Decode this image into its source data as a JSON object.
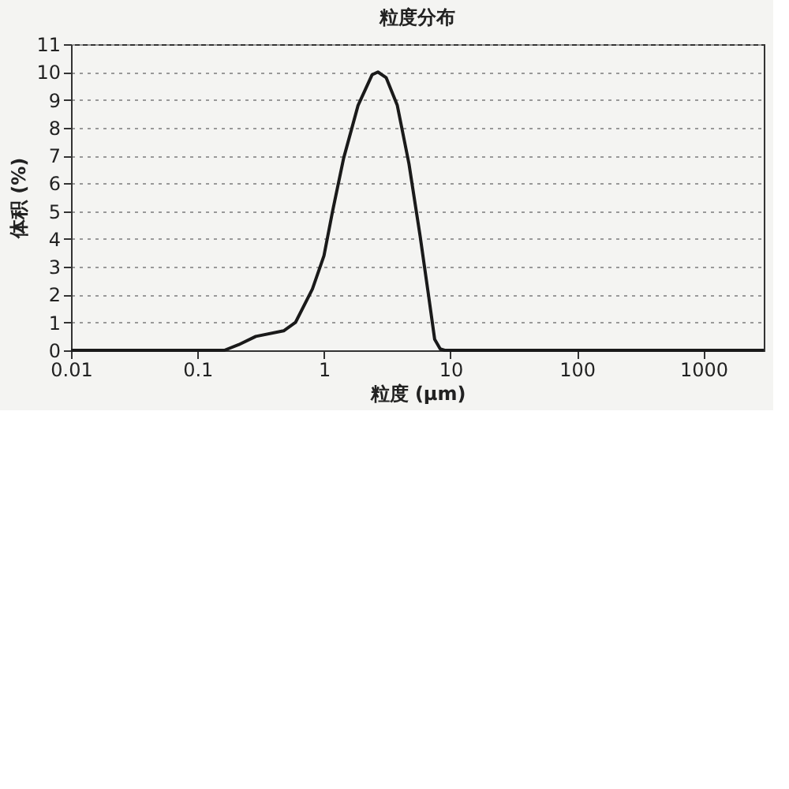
{
  "chart_data": {
    "type": "line",
    "title": "粒度分布",
    "xlabel": "粒度 (μm)",
    "ylabel": "体积 (%)",
    "x": [
      0.01,
      0.1,
      0.163,
      0.211,
      0.289,
      0.48,
      0.595,
      0.81,
      1.0,
      1.17,
      1.43,
      1.86,
      2.4,
      2.67,
      3.1,
      3.8,
      4.7,
      5.76,
      6.7,
      7.5,
      8.3,
      9.0,
      10,
      100,
      1000,
      3000
    ],
    "series": [
      {
        "color": "#1a1a1a",
        "values": [
          0,
          0,
          0,
          0.2,
          0.5,
          0.7,
          1.0,
          2.2,
          3.4,
          5.0,
          6.9,
          8.8,
          9.9,
          10.0,
          9.8,
          8.8,
          6.7,
          4.1,
          2.0,
          0.4,
          0.05,
          0,
          0,
          0,
          0,
          0
        ]
      }
    ],
    "log": "x",
    "xlim": [
      0.01,
      3000
    ],
    "xticks": [
      0.01,
      0.1,
      1,
      10,
      100,
      1000
    ],
    "ylim": [
      0,
      11
    ],
    "yticks": [
      0,
      1,
      2,
      3,
      4,
      5,
      6,
      7,
      8,
      9,
      10,
      11
    ],
    "grid": "y",
    "line_style": "solid",
    "marker": "none"
  }
}
